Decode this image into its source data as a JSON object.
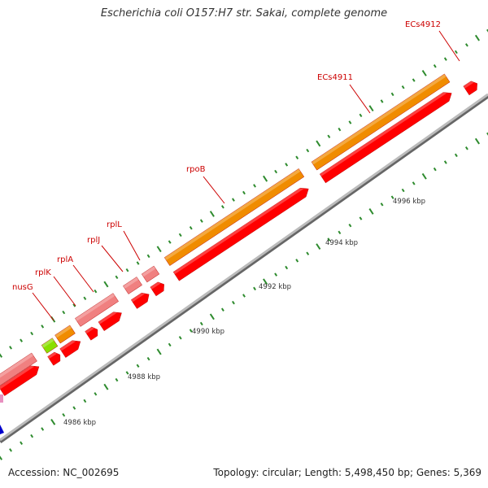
{
  "title": "Escherichia coli O157:H7 str. Sakai, complete genome",
  "footer": {
    "accession": "Accession: NC_002695",
    "summary": "Topology: circular; Length: 5,498,450 bp; Genes: 5,369"
  },
  "kbp_labels": [
    "4986 kbp",
    "4988 kbp",
    "4990 kbp",
    "4992 kbp",
    "4994 kbp",
    "4996 kbp"
  ],
  "gene_labels": [
    "nusG",
    "rplK",
    "rplA",
    "rplJ",
    "rplL",
    "rpoB",
    "ECs4911",
    "ECs4912"
  ],
  "colors": {
    "cds_forward": "#ff0000",
    "gene_pink": "#f08080",
    "gene_orange": "#f08c00",
    "trna_green": "#88e000",
    "tick_green": "#2e8b2e",
    "axis_gray": "#999999"
  }
}
